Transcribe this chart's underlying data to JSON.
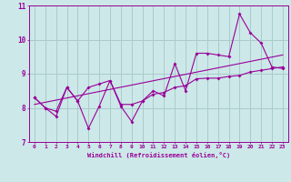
{
  "xlabel": "Windchill (Refroidissement éolien,°C)",
  "xlim": [
    -0.5,
    23.5
  ],
  "ylim": [
    7,
    11
  ],
  "yticks": [
    7,
    8,
    9,
    10,
    11
  ],
  "xticks": [
    0,
    1,
    2,
    3,
    4,
    5,
    6,
    7,
    8,
    9,
    10,
    11,
    12,
    13,
    14,
    15,
    16,
    17,
    18,
    19,
    20,
    21,
    22,
    23
  ],
  "bg_color": "#cce8e8",
  "grid_color": "#aacccc",
  "line_color": "#990099",
  "series1_x": [
    0,
    1,
    2,
    3,
    4,
    5,
    6,
    7,
    8,
    9,
    10,
    11,
    12,
    13,
    14,
    15,
    16,
    17,
    18,
    19,
    20,
    21,
    22,
    23
  ],
  "series1_y": [
    8.3,
    8.0,
    7.75,
    8.6,
    8.2,
    7.4,
    8.05,
    8.8,
    8.05,
    7.6,
    8.2,
    8.5,
    8.35,
    9.3,
    8.5,
    9.6,
    9.6,
    9.55,
    9.5,
    10.75,
    10.2,
    9.9,
    9.2,
    9.15
  ],
  "series2_x": [
    0,
    1,
    2,
    3,
    4,
    5,
    6,
    7,
    8,
    9,
    10,
    11,
    12,
    13,
    14,
    15,
    16,
    17,
    18,
    19,
    20,
    21,
    22,
    23
  ],
  "series2_y": [
    8.3,
    8.0,
    7.9,
    8.6,
    8.2,
    8.6,
    8.7,
    8.8,
    8.1,
    8.1,
    8.2,
    8.4,
    8.45,
    8.6,
    8.65,
    8.85,
    8.87,
    8.87,
    8.92,
    8.95,
    9.05,
    9.1,
    9.15,
    9.2
  ],
  "trend_x": [
    0,
    23
  ],
  "trend_y": [
    8.1,
    9.55
  ]
}
